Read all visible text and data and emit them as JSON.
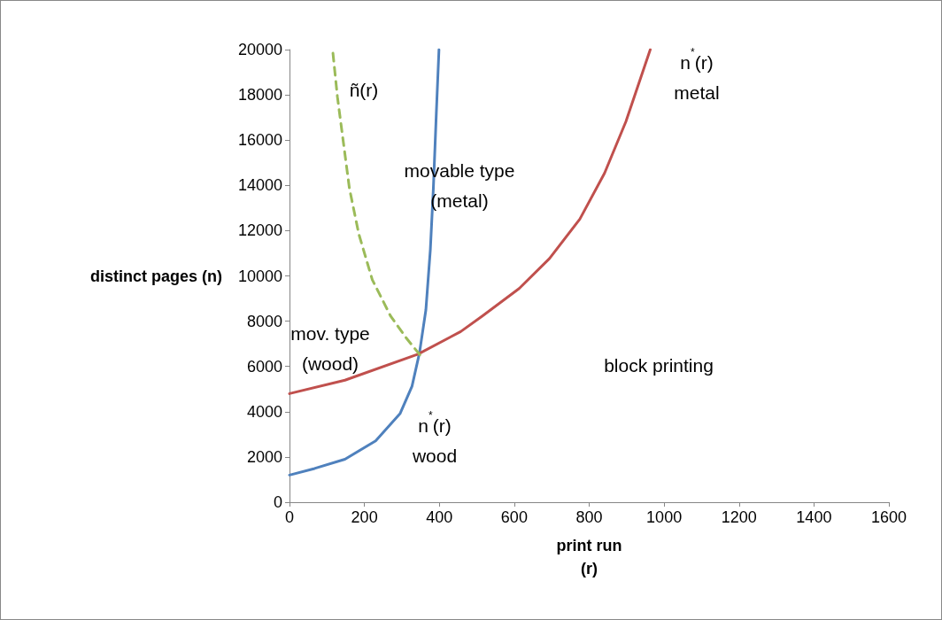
{
  "chart_data": {
    "type": "line",
    "xlabel": "print run\n(r)",
    "ylabel": "distinct pages (n)",
    "xlim": [
      0,
      1600
    ],
    "xticks": [
      0,
      200,
      400,
      600,
      800,
      1000,
      1200,
      1400,
      1600
    ],
    "ylim": [
      0,
      20000
    ],
    "yticks": [
      0,
      2000,
      4000,
      6000,
      8000,
      10000,
      12000,
      14000,
      16000,
      18000,
      20000
    ],
    "grid": false,
    "marker": "none",
    "series": [
      {
        "color": "#4f81bd",
        "line_style": "solid",
        "x": [
          0,
          67,
          148,
          230,
          295,
          327,
          347,
          364,
          376,
          384,
          392,
          399
        ],
        "values": [
          1200,
          1490,
          1900,
          2710,
          3910,
          5120,
          6600,
          8490,
          11170,
          13860,
          17220,
          20000
        ]
      },
      {
        "color": "#c0504d",
        "line_style": "solid",
        "x": [
          0,
          148,
          343,
          457,
          515,
          613,
          694,
          775,
          841,
          898,
          963
        ],
        "values": [
          4800,
          5390,
          6540,
          7540,
          8230,
          9440,
          10770,
          12510,
          14540,
          16820,
          20000
        ]
      },
      {
        "color": "#9bbb59",
        "line_style": "dashed",
        "x": [
          116,
          128,
          144,
          160,
          185,
          221,
          270,
          311,
          350
        ],
        "values": [
          19840,
          17900,
          15880,
          13860,
          11850,
          9830,
          8220,
          7270,
          6470
        ]
      }
    ],
    "annotations": [
      "ñ(r)",
      "movable type\n(metal)",
      "mov. type\n(wood)",
      "n$^{*}$(r)\nwood",
      "n$^{*}$(r)\nmetal",
      "block printing"
    ]
  }
}
